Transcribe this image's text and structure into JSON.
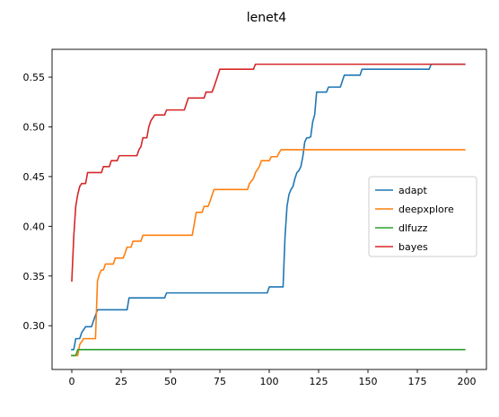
{
  "chart_data": {
    "type": "line",
    "title": "lenet4",
    "xlabel": "",
    "ylabel": "",
    "xlim": [
      -10,
      210
    ],
    "ylim": [
      0.256,
      0.578
    ],
    "xticks": [
      0,
      25,
      50,
      75,
      100,
      125,
      150,
      175,
      200
    ],
    "yticks": [
      0.3,
      0.35,
      0.4,
      0.45,
      0.5,
      0.55
    ],
    "xtick_labels": [
      "0",
      "25",
      "50",
      "75",
      "100",
      "125",
      "150",
      "175",
      "200"
    ],
    "ytick_labels": [
      "0.30",
      "0.35",
      "0.40",
      "0.45",
      "0.50",
      "0.55"
    ],
    "grid": false,
    "legend_position": "center-right",
    "series": [
      {
        "name": "adapt",
        "color": "#1f77b4",
        "points": [
          [
            0,
            0.276
          ],
          [
            1,
            0.276
          ],
          [
            2,
            0.287
          ],
          [
            4,
            0.287
          ],
          [
            5,
            0.293
          ],
          [
            7,
            0.299
          ],
          [
            10,
            0.299
          ],
          [
            11,
            0.305
          ],
          [
            13,
            0.316
          ],
          [
            28,
            0.316
          ],
          [
            29,
            0.328
          ],
          [
            47,
            0.328
          ],
          [
            48,
            0.333
          ],
          [
            99,
            0.333
          ],
          [
            100,
            0.339
          ],
          [
            107,
            0.339
          ],
          [
            108,
            0.39
          ],
          [
            109,
            0.42
          ],
          [
            110,
            0.432
          ],
          [
            111,
            0.437
          ],
          [
            112,
            0.44
          ],
          [
            113,
            0.448
          ],
          [
            114,
            0.454
          ],
          [
            115,
            0.456
          ],
          [
            116,
            0.46
          ],
          [
            117,
            0.47
          ],
          [
            118,
            0.485
          ],
          [
            119,
            0.489
          ],
          [
            120,
            0.489
          ],
          [
            121,
            0.49
          ],
          [
            122,
            0.505
          ],
          [
            123,
            0.512
          ],
          [
            124,
            0.535
          ],
          [
            129,
            0.535
          ],
          [
            130,
            0.54
          ],
          [
            136,
            0.54
          ],
          [
            137,
            0.546
          ],
          [
            138,
            0.552
          ],
          [
            146,
            0.552
          ],
          [
            147,
            0.558
          ],
          [
            181,
            0.558
          ],
          [
            182,
            0.563
          ],
          [
            199,
            0.563
          ]
        ]
      },
      {
        "name": "deepxplore",
        "color": "#ff7f0e",
        "points": [
          [
            0,
            0.27
          ],
          [
            3,
            0.27
          ],
          [
            4,
            0.281
          ],
          [
            6,
            0.287
          ],
          [
            12,
            0.287
          ],
          [
            13,
            0.345
          ],
          [
            14,
            0.352
          ],
          [
            15,
            0.356
          ],
          [
            16,
            0.356
          ],
          [
            17,
            0.362
          ],
          [
            21,
            0.362
          ],
          [
            22,
            0.368
          ],
          [
            26,
            0.368
          ],
          [
            27,
            0.373
          ],
          [
            28,
            0.379
          ],
          [
            30,
            0.379
          ],
          [
            31,
            0.385
          ],
          [
            35,
            0.385
          ],
          [
            36,
            0.391
          ],
          [
            61,
            0.391
          ],
          [
            62,
            0.402
          ],
          [
            63,
            0.414
          ],
          [
            66,
            0.414
          ],
          [
            67,
            0.42
          ],
          [
            69,
            0.42
          ],
          [
            70,
            0.425
          ],
          [
            71,
            0.431
          ],
          [
            72,
            0.437
          ],
          [
            89,
            0.437
          ],
          [
            90,
            0.443
          ],
          [
            92,
            0.448
          ],
          [
            93,
            0.454
          ],
          [
            95,
            0.46
          ],
          [
            96,
            0.466
          ],
          [
            100,
            0.466
          ],
          [
            101,
            0.47
          ],
          [
            104,
            0.47
          ],
          [
            105,
            0.474
          ],
          [
            106,
            0.477
          ],
          [
            199,
            0.477
          ]
        ]
      },
      {
        "name": "dlfuzz",
        "color": "#2ca02c",
        "points": [
          [
            0,
            0.27
          ],
          [
            2,
            0.27
          ],
          [
            3,
            0.276
          ],
          [
            199,
            0.276
          ]
        ]
      },
      {
        "name": "bayes",
        "color": "#d62728",
        "points": [
          [
            0,
            0.345
          ],
          [
            1,
            0.39
          ],
          [
            2,
            0.42
          ],
          [
            3,
            0.432
          ],
          [
            4,
            0.44
          ],
          [
            5,
            0.443
          ],
          [
            7,
            0.443
          ],
          [
            8,
            0.454
          ],
          [
            15,
            0.454
          ],
          [
            16,
            0.46
          ],
          [
            19,
            0.46
          ],
          [
            20,
            0.466
          ],
          [
            23,
            0.466
          ],
          [
            24,
            0.471
          ],
          [
            33,
            0.471
          ],
          [
            34,
            0.477
          ],
          [
            35,
            0.48
          ],
          [
            36,
            0.489
          ],
          [
            38,
            0.489
          ],
          [
            39,
            0.5
          ],
          [
            40,
            0.506
          ],
          [
            42,
            0.512
          ],
          [
            47,
            0.512
          ],
          [
            48,
            0.517
          ],
          [
            57,
            0.517
          ],
          [
            58,
            0.523
          ],
          [
            59,
            0.529
          ],
          [
            67,
            0.529
          ],
          [
            68,
            0.535
          ],
          [
            71,
            0.535
          ],
          [
            72,
            0.54
          ],
          [
            74,
            0.552
          ],
          [
            75,
            0.558
          ],
          [
            92,
            0.558
          ],
          [
            93,
            0.563
          ],
          [
            199,
            0.563
          ]
        ]
      }
    ]
  }
}
